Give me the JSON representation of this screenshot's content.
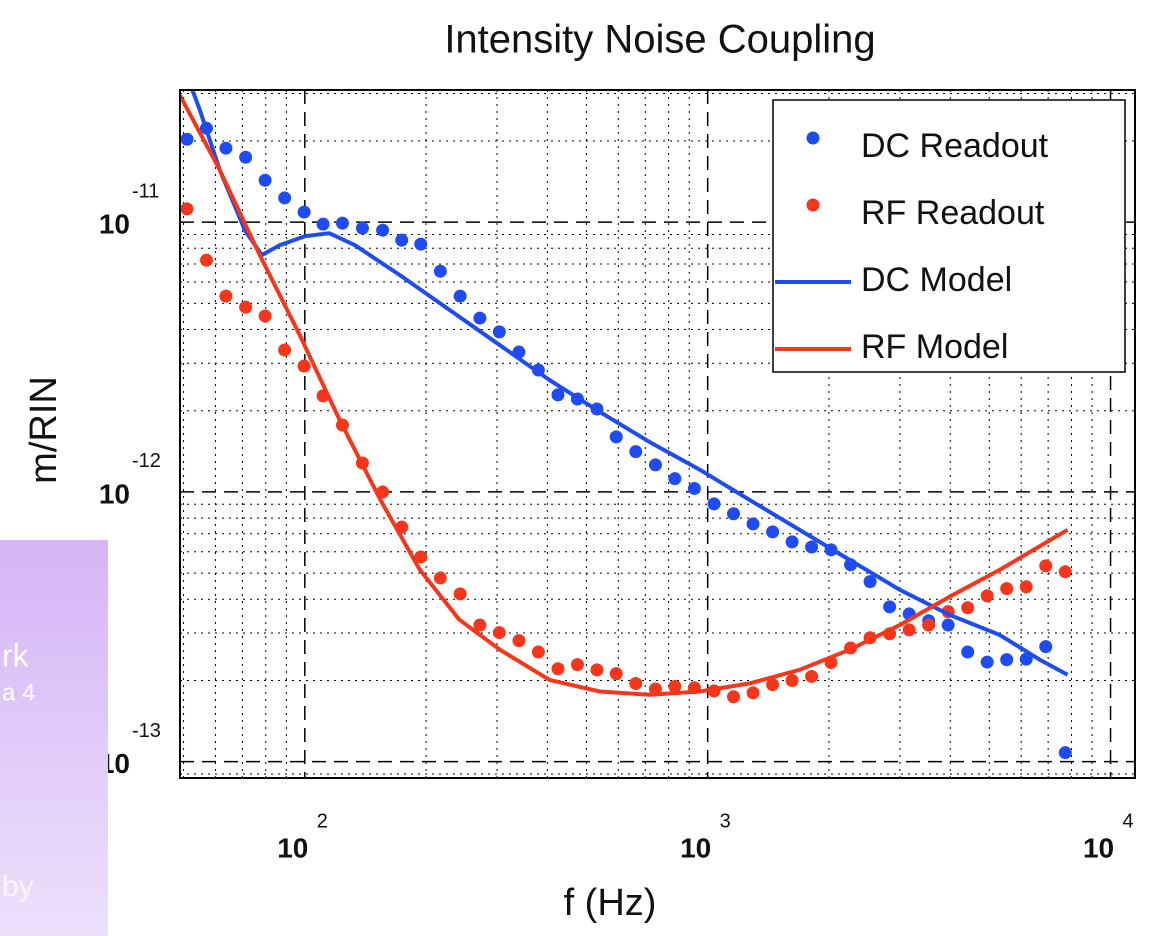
{
  "chart_data": {
    "type": "scatter",
    "title": "Intensity Noise Coupling",
    "xlabel": "f (Hz)",
    "ylabel": "m/RIN",
    "xscale": "log",
    "yscale": "log",
    "xlim": [
      49,
      11500
    ],
    "ylim": [
      8.7e-14,
      3.09e-11
    ],
    "xticks": [
      {
        "value": 100,
        "label": "10",
        "exponent": "2"
      },
      {
        "value": 1000,
        "label": "10",
        "exponent": "3"
      },
      {
        "value": 10000,
        "label": "10",
        "exponent": "4"
      }
    ],
    "yticks": [
      {
        "value": 1e-13,
        "label": "10",
        "exponent": "-13"
      },
      {
        "value": 1e-12,
        "label": "10",
        "exponent": "-12"
      },
      {
        "value": 1e-11,
        "label": "10",
        "exponent": "-11"
      }
    ],
    "grid": true,
    "legend": "top-right",
    "series": [
      {
        "name": "DC Readout",
        "style": "markers",
        "color": "#1f4cf2",
        "x": [
          51.0,
          57.0,
          63.7,
          71.3,
          79.7,
          89.1,
          99.6,
          111,
          124,
          139,
          156,
          174,
          194,
          217,
          243,
          272,
          304,
          340,
          380,
          425,
          475,
          531,
          593,
          663,
          742,
          829,
          927,
          1037,
          1159,
          1296,
          1449,
          1620,
          1811,
          2024,
          2263,
          2530,
          2829,
          3163,
          3536,
          3953,
          4420,
          4941,
          5524,
          6176,
          6905,
          7720
        ],
        "values": [
          2.03e-11,
          2.23e-11,
          1.88e-11,
          1.74e-11,
          1.43e-11,
          1.23e-11,
          1.09e-11,
          9.83e-12,
          9.92e-12,
          9.5e-12,
          9.34e-12,
          8.58e-12,
          8.29e-12,
          6.58e-12,
          5.32e-12,
          4.41e-12,
          3.92e-12,
          3.3e-12,
          2.83e-12,
          2.29e-12,
          2.21e-12,
          2.03e-12,
          1.6e-12,
          1.41e-12,
          1.26e-12,
          1.12e-12,
          1.03e-12,
          9.03e-13,
          8.3e-13,
          7.61e-13,
          7.11e-13,
          6.53e-13,
          6.25e-13,
          6.1e-13,
          5.37e-13,
          4.65e-13,
          3.75e-13,
          3.53e-13,
          3.33e-13,
          3.21e-13,
          2.55e-13,
          2.34e-13,
          2.39e-13,
          2.4e-13,
          2.67e-13,
          1.08e-13
        ]
      },
      {
        "name": "RF Readout",
        "style": "markers",
        "color": "#f5361a",
        "x": [
          51.0,
          57.0,
          63.7,
          71.3,
          79.7,
          89.1,
          99.6,
          111,
          124,
          139,
          156,
          174,
          194,
          217,
          243,
          272,
          304,
          340,
          380,
          425,
          475,
          531,
          593,
          663,
          742,
          829,
          927,
          1037,
          1159,
          1296,
          1449,
          1620,
          1811,
          2024,
          2263,
          2530,
          2829,
          3163,
          3536,
          3953,
          4420,
          4941,
          5524,
          6176,
          6905,
          7720
        ],
        "values": [
          1.12e-11,
          7.23e-12,
          5.32e-12,
          4.84e-12,
          4.49e-12,
          3.36e-12,
          2.93e-12,
          2.27e-12,
          1.77e-12,
          1.28e-12,
          1e-12,
          7.41e-13,
          5.74e-13,
          4.8e-13,
          4.19e-13,
          3.21e-13,
          3.01e-13,
          2.81e-13,
          2.55e-13,
          2.21e-13,
          2.29e-13,
          2.19e-13,
          2.12e-13,
          1.95e-13,
          1.86e-13,
          1.9e-13,
          1.88e-13,
          1.83e-13,
          1.74e-13,
          1.8e-13,
          1.93e-13,
          2e-13,
          2.07e-13,
          2.33e-13,
          2.64e-13,
          2.88e-13,
          2.98e-13,
          3.08e-13,
          3.21e-13,
          3.6e-13,
          3.72e-13,
          4.12e-13,
          4.38e-13,
          4.45e-13,
          5.32e-13,
          5.06e-13
        ]
      },
      {
        "name": "DC Model",
        "style": "line",
        "color": "#1f4cf2",
        "x": [
          50.4,
          54.9,
          61.5,
          71.0,
          78.2,
          86.7,
          100,
          115,
          133,
          172,
          229,
          305,
          405,
          540,
          718,
          955,
          1271,
          1691,
          2250,
          2995,
          3985,
          5303,
          6668,
          7820
        ],
        "values": [
          3.66e-11,
          2.6e-11,
          1.56e-11,
          9.34e-12,
          7.55e-12,
          8.22e-12,
          8.87e-12,
          9.1e-12,
          8.22e-12,
          6.37e-12,
          4.72e-12,
          3.5e-12,
          2.6e-12,
          1.98e-12,
          1.53e-12,
          1.21e-12,
          9.34e-13,
          7.23e-13,
          5.6e-13,
          4.34e-13,
          3.5e-13,
          2.95e-13,
          2.39e-13,
          2.1e-13
        ]
      },
      {
        "name": "RF Model",
        "style": "line",
        "color": "#f5361a",
        "x": [
          49.0,
          61.5,
          77.3,
          97.2,
          122,
          154,
          193,
          242,
          305,
          405,
          540,
          718,
          955,
          1271,
          1691,
          2250,
          2995,
          3985,
          5303,
          7820
        ],
        "values": [
          2.95e-11,
          1.56e-11,
          7.55e-12,
          3.81e-12,
          1.85e-12,
          9.34e-13,
          5.14e-13,
          3.36e-13,
          2.6e-13,
          2.01e-13,
          1.82e-13,
          1.77e-13,
          1.82e-13,
          1.95e-13,
          2.19e-13,
          2.6e-13,
          3.21e-13,
          4.09e-13,
          5.14e-13,
          7.23e-13
        ]
      }
    ],
    "overlay_text": [
      "rk",
      "a 4",
      "by"
    ]
  }
}
